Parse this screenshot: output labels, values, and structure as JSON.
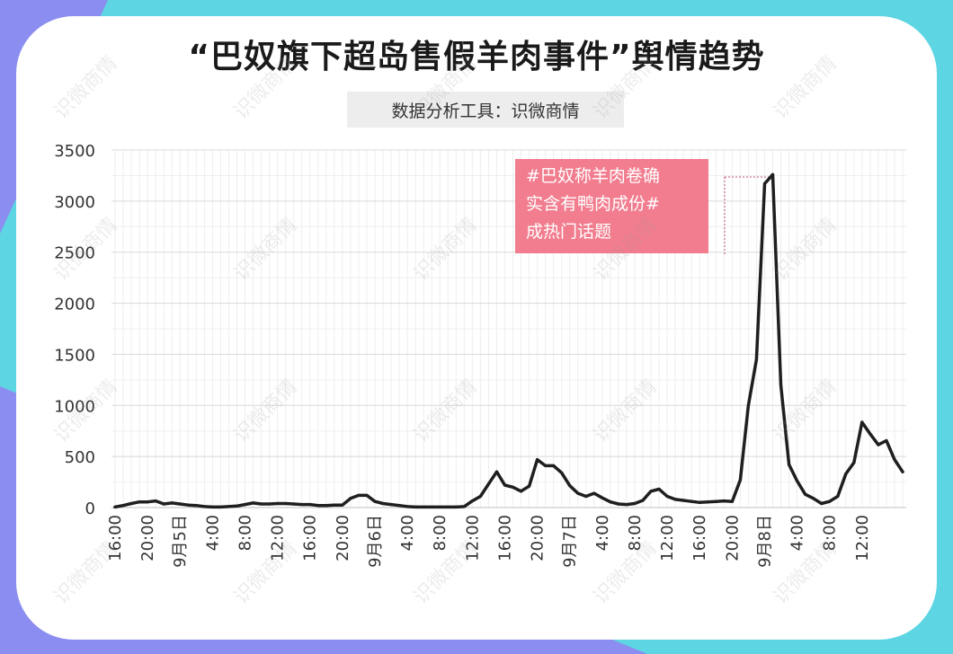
{
  "title": "“巴奴旗下超岛售假羊肉事件”舆情趋势",
  "subtitle": "数据分析工具：识微商情",
  "watermark": "识微商情",
  "annotation": "#巴奴称羊肉卷确\n实含有鸭肉成份#\n成热门话题",
  "colors": {
    "cyan": "#5dd5e3",
    "purple": "#8b8ef0",
    "line": "#1f1f1f",
    "annotation": "#f27d8f"
  },
  "chart_data": {
    "type": "line",
    "ylim": [
      0,
      3500
    ],
    "y_ticks": [
      0,
      500,
      1000,
      1500,
      2000,
      2500,
      3000,
      3500
    ],
    "x_tick_labels": [
      "16:00",
      "20:00",
      "9月5日",
      "4:00",
      "8:00",
      "12:00",
      "16:00",
      "20:00",
      "9月6日",
      "4:00",
      "8:00",
      "12:00",
      "16:00",
      "20:00",
      "9月7日",
      "4:00",
      "8:00",
      "12:00",
      "16:00",
      "20:00",
      "9月8日",
      "4:00",
      "8:00",
      "12:00"
    ],
    "series": [
      {
        "values": [
          5,
          20,
          40,
          55,
          55,
          65,
          35,
          45,
          35,
          25,
          20,
          10,
          5,
          5,
          10,
          15,
          30,
          45,
          35,
          35,
          40,
          40,
          35,
          30,
          30,
          20,
          20,
          25,
          25,
          90,
          120,
          120,
          60,
          40,
          30,
          20,
          10,
          5,
          5,
          5,
          5,
          5,
          5,
          10,
          65,
          110,
          230,
          350,
          220,
          200,
          160,
          210,
          470,
          410,
          410,
          340,
          215,
          140,
          110,
          140,
          95,
          55,
          35,
          30,
          40,
          70,
          160,
          180,
          110,
          80,
          70,
          60,
          50,
          55,
          60,
          65,
          60,
          270,
          1000,
          1450,
          3170,
          3260,
          1200,
          420,
          260,
          130,
          90,
          40,
          60,
          110,
          330,
          440,
          835,
          720,
          615,
          655,
          470,
          350
        ]
      }
    ],
    "annotations": [
      {
        "text": "#巴奴称羊肉卷确实含有鸭肉成份#成热门话题",
        "x_index": 81
      }
    ]
  }
}
